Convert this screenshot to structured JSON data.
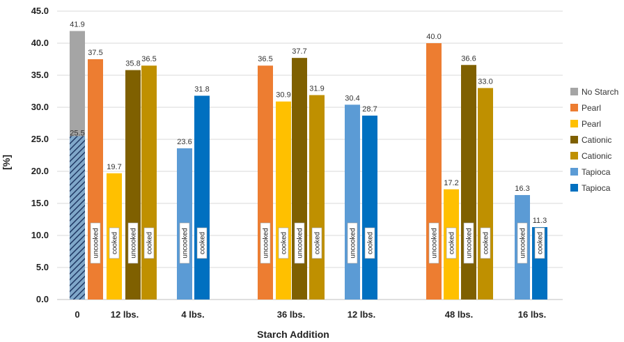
{
  "chart_data": {
    "type": "bar",
    "xlabel": "Starch Addition",
    "ylabel": "[%]",
    "ylim": [
      0,
      45
    ],
    "y_ticks": [
      "0.0",
      "5.0",
      "10.0",
      "15.0",
      "20.0",
      "25.0",
      "30.0",
      "35.0",
      "40.0",
      "45.0"
    ],
    "grid": "horizontal",
    "legend_position": "right",
    "legend": [
      {
        "label": "No Starch",
        "color": "#A5A5A5"
      },
      {
        "label": "Pearl",
        "color": "#ED7D31"
      },
      {
        "label": "Pearl",
        "color": "#FFC000"
      },
      {
        "label": "Cationic",
        "color": "#7F6000"
      },
      {
        "label": "Cationic",
        "color": "#BF9000"
      },
      {
        "label": "Tapioca",
        "color": "#5B9BD5"
      },
      {
        "label": "Tapioca",
        "color": "#0070C0"
      }
    ],
    "categories": [
      "0",
      "12 lbs.",
      "4 lbs.",
      "36 lbs.",
      "12 lbs.",
      "48 lbs.",
      "16 lbs."
    ],
    "bars": [
      {
        "category": "0",
        "series": "No Starch",
        "value": 41.9,
        "label": "41.9",
        "color": "#A5A5A5"
      },
      {
        "category": "0",
        "series": "No Starch",
        "value": 25.5,
        "label": "25.5",
        "pattern": "hatched",
        "overlay": true
      },
      {
        "category": "12 lbs.",
        "series": "Pearl",
        "value": 37.5,
        "label": "37.5",
        "state": "uncooked",
        "color": "#ED7D31"
      },
      {
        "category": "12 lbs.",
        "series": "Pearl",
        "value": 19.7,
        "label": "19.7",
        "state": "cooked",
        "color": "#FFC000"
      },
      {
        "category": "12 lbs.",
        "series": "Cationic",
        "value": 35.8,
        "label": "35.8",
        "state": "uncooked",
        "color": "#7F6000"
      },
      {
        "category": "12 lbs.",
        "series": "Cationic",
        "value": 36.5,
        "label": "36.5",
        "state": "cooked",
        "color": "#BF9000"
      },
      {
        "category": "4 lbs.",
        "series": "Tapioca",
        "value": 23.6,
        "label": "23.6",
        "state": "uncooked",
        "color": "#5B9BD5"
      },
      {
        "category": "4 lbs.",
        "series": "Tapioca",
        "value": 31.8,
        "label": "31.8",
        "state": "cooked",
        "color": "#0070C0"
      },
      {
        "category": "36 lbs.",
        "series": "Pearl",
        "value": 36.5,
        "label": "36.5",
        "state": "uncooked",
        "color": "#ED7D31"
      },
      {
        "category": "36 lbs.",
        "series": "Pearl",
        "value": 30.9,
        "label": "30.9",
        "state": "cooked",
        "color": "#FFC000"
      },
      {
        "category": "36 lbs.",
        "series": "Cationic",
        "value": 37.7,
        "label": "37.7",
        "state": "uncooked",
        "color": "#7F6000"
      },
      {
        "category": "36 lbs.",
        "series": "Cationic",
        "value": 31.9,
        "label": "31.9",
        "state": "cooked",
        "color": "#BF9000"
      },
      {
        "category": "12 lbs.",
        "series": "Tapioca",
        "value": 30.4,
        "label": "30.4",
        "state": "uncooked",
        "color": "#5B9BD5"
      },
      {
        "category": "12 lbs.",
        "series": "Tapioca",
        "value": 28.7,
        "label": "28.7",
        "state": "cooked",
        "color": "#0070C0"
      },
      {
        "category": "48 lbs.",
        "series": "Pearl",
        "value": 40.0,
        "label": "40.0",
        "state": "uncooked",
        "color": "#ED7D31"
      },
      {
        "category": "48 lbs.",
        "series": "Pearl",
        "value": 17.2,
        "label": "17.2",
        "state": "cooked",
        "color": "#FFC000"
      },
      {
        "category": "48 lbs.",
        "series": "Cationic",
        "value": 36.6,
        "label": "36.6",
        "state": "uncooked",
        "color": "#7F6000"
      },
      {
        "category": "48 lbs.",
        "series": "Cationic",
        "value": 33.0,
        "label": "33.0",
        "state": "cooked",
        "color": "#BF9000"
      },
      {
        "category": "16 lbs.",
        "series": "Tapioca",
        "value": 16.3,
        "label": "16.3",
        "state": "uncooked",
        "color": "#5B9BD5"
      },
      {
        "category": "16 lbs.",
        "series": "Tapioca",
        "value": 11.3,
        "label": "11.3",
        "state": "cooked",
        "color": "#0070C0"
      }
    ]
  }
}
